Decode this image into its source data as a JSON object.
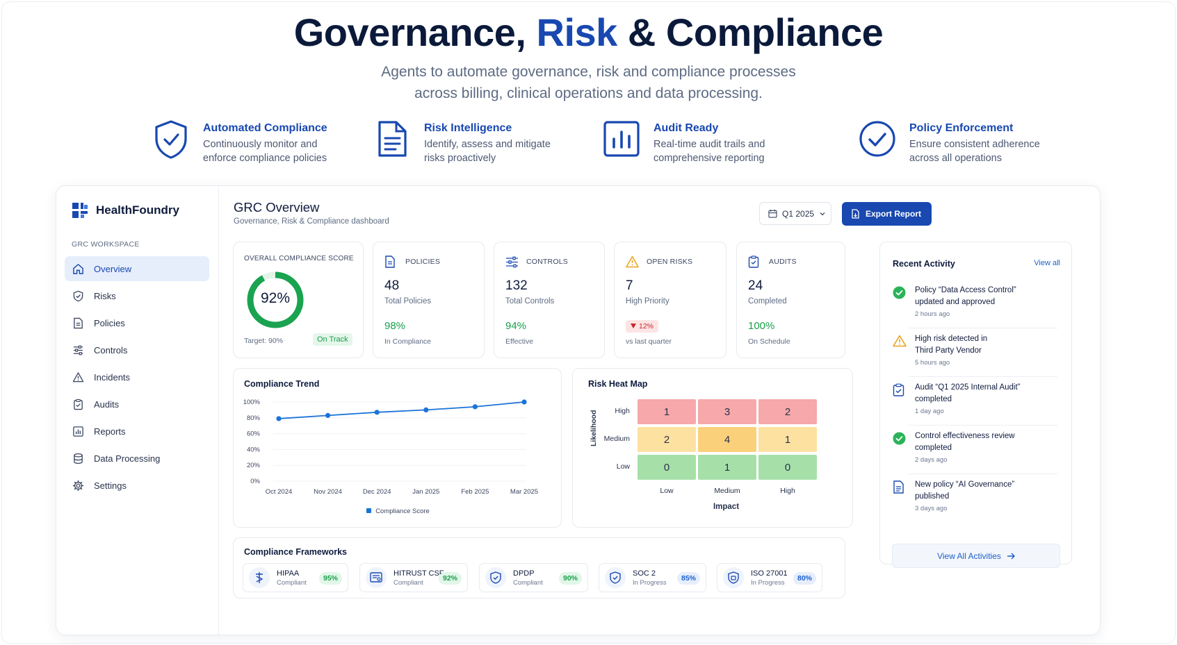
{
  "hero": {
    "title_part1": "Governance, ",
    "title_part2": "Risk",
    "title_part3": " & Compliance",
    "subtitle_line1": "Agents to automate governance, risk and compliance processes",
    "subtitle_line2": "across billing, clinical operations and data processing."
  },
  "features": [
    {
      "title": "Automated Compliance",
      "desc": "Continuously monitor and enforce compliance policies",
      "icon": "shield-check-icon"
    },
    {
      "title": "Risk Intelligence",
      "desc": "Identify, assess and mitigate risks proactively",
      "icon": "document-icon"
    },
    {
      "title": "Audit Ready",
      "desc": "Real-time audit trails and comprehensive reporting",
      "icon": "bar-chart-icon"
    },
    {
      "title": "Policy Enforcement",
      "desc": "Ensure consistent adherence across all operations",
      "icon": "check-circle-icon"
    }
  ],
  "brand": {
    "name": "HealthFoundry"
  },
  "sidebar": {
    "section_label": "GRC WORKSPACE",
    "items": [
      {
        "label": "Overview",
        "icon": "home-icon",
        "active": true
      },
      {
        "label": "Risks",
        "icon": "shield-icon"
      },
      {
        "label": "Policies",
        "icon": "document-icon"
      },
      {
        "label": "Controls",
        "icon": "sliders-icon"
      },
      {
        "label": "Incidents",
        "icon": "warning-icon"
      },
      {
        "label": "Audits",
        "icon": "clipboard-icon"
      },
      {
        "label": "Reports",
        "icon": "report-icon"
      },
      {
        "label": "Data Processing",
        "icon": "database-icon"
      },
      {
        "label": "Settings",
        "icon": "gear-icon"
      }
    ]
  },
  "header": {
    "title": "GRC Overview",
    "subtitle": "Governance, Risk & Compliance dashboard",
    "period": "Q1 2025",
    "export_label": "Export Report"
  },
  "score": {
    "label": "OVERALL COMPLIANCE SCORE",
    "value": "92%",
    "fraction": 0.92,
    "target": "Target: 90%",
    "status": "On Track"
  },
  "kpis": {
    "policies": {
      "label": "POLICIES",
      "value": "48",
      "sub": "Total Policies",
      "pct": "98%",
      "foot": "In Compliance"
    },
    "controls": {
      "label": "CONTROLS",
      "value": "132",
      "sub": "Total Controls",
      "pct": "94%",
      "foot": "Effective"
    },
    "risks": {
      "label": "OPEN RISKS",
      "value": "7",
      "sub": "High Priority",
      "badge": "12%",
      "foot": "vs last quarter"
    },
    "audits": {
      "label": "AUDITS",
      "value": "24",
      "sub": "Completed",
      "pct": "100%",
      "foot": "On Schedule"
    }
  },
  "trend": {
    "title": "Compliance Trend"
  },
  "chart_data": {
    "type": "line",
    "categories": [
      "Oct 2024",
      "Nov 2024",
      "Dec 2024",
      "Jan 2025",
      "Feb 2025",
      "Mar 2025"
    ],
    "series": [
      {
        "name": "Compliance Score",
        "values": [
          79,
          83,
          87,
          90,
          94,
          100
        ]
      }
    ],
    "yticks": [
      "0%",
      "20%",
      "40%",
      "60%",
      "80%",
      "100%"
    ],
    "ylim": [
      0,
      100
    ],
    "title": "Compliance Trend",
    "legend": "bottom",
    "color": "#1a73d9"
  },
  "heatmap": {
    "title": "Risk Heat Map",
    "y_axis_label": "Likelihood",
    "x_axis_label": "Impact",
    "rows": [
      "High",
      "Medium",
      "Low"
    ],
    "cols": [
      "Low",
      "Medium",
      "High"
    ],
    "values": [
      [
        "1",
        "3",
        "2"
      ],
      [
        "2",
        "4",
        "1"
      ],
      [
        "0",
        "1",
        "0"
      ]
    ],
    "row_colors": [
      "#f6a8aa",
      "#fde1a0",
      "#a6e0a8"
    ],
    "highlight_color": "#fbd07a"
  },
  "activity": {
    "title": "Recent Activity",
    "view_all": "View all",
    "items": [
      {
        "line1": "Policy “Data Access Control”",
        "line2": "updated and approved",
        "time": "2 hours ago",
        "icon": "check-circle-icon"
      },
      {
        "line1": "High risk detected in",
        "line2": "Third Party Vendor",
        "time": "5 hours ago",
        "icon": "warning-icon"
      },
      {
        "line1": "Audit “Q1 2025 Internal Audit”",
        "line2": "completed",
        "time": "1 day ago",
        "icon": "clipboard-icon"
      },
      {
        "line1": "Control effectiveness review",
        "line2": "completed",
        "time": "2 days ago",
        "icon": "check-circle-icon"
      },
      {
        "line1": "New policy “AI Governance”",
        "line2": "published",
        "time": "3 days ago",
        "icon": "document-icon"
      }
    ],
    "button": "View All Activities"
  },
  "frameworks": {
    "title": "Compliance Frameworks",
    "items": [
      {
        "name": "HIPAA",
        "status": "Compliant",
        "pct": "95%",
        "icon": "caduceus-icon"
      },
      {
        "name": "HITRUST CSF",
        "status": "Compliant",
        "pct": "92%",
        "icon": "certificate-icon"
      },
      {
        "name": "DPDP",
        "status": "Compliant",
        "pct": "90%",
        "icon": "shield-check-icon"
      },
      {
        "name": "SOC 2",
        "status": "In Progress",
        "pct": "85%",
        "icon": "shield-check-icon"
      },
      {
        "name": "ISO 27001",
        "status": "In Progress",
        "pct": "80%",
        "icon": "iso-shield-icon"
      }
    ]
  }
}
